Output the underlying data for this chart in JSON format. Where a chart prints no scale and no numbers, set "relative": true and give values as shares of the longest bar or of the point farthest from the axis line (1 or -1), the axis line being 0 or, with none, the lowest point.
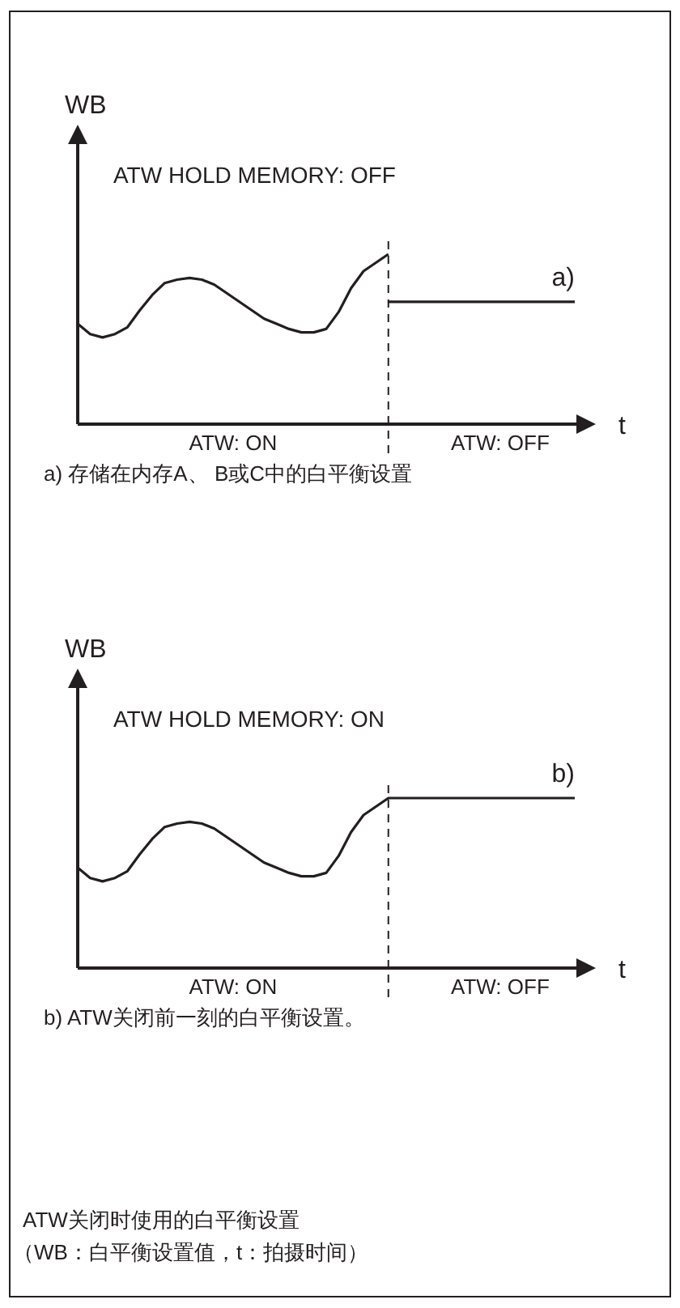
{
  "chart_data": [
    {
      "type": "line",
      "relative": true,
      "title": "ATW HOLD MEMORY: OFF",
      "xlabel": "t",
      "ylabel": "WB",
      "line_style": "solid",
      "marker": "none",
      "categories": [
        null,
        null,
        null,
        null,
        null,
        null,
        null,
        null,
        null,
        null,
        null,
        null,
        null,
        null,
        null,
        null,
        null,
        null,
        null,
        null,
        null,
        null,
        null,
        null,
        null,
        null,
        null,
        null,
        null,
        null,
        null,
        null,
        null,
        null,
        null,
        null,
        null,
        null,
        null,
        null,
        null
      ],
      "series": [
        {
          "color": "#231f20",
          "values": [
            0.59,
            0.53,
            0.51,
            0.53,
            0.57,
            0.67,
            0.76,
            0.83,
            0.85,
            0.86,
            0.85,
            0.82,
            0.77,
            0.72,
            0.67,
            0.62,
            0.59,
            0.56,
            0.54,
            0.54,
            0.56,
            0.66,
            0.8,
            0.9,
            0.95,
            1.0,
            null,
            null,
            null,
            null,
            null,
            null,
            null,
            null,
            null,
            null,
            null,
            null,
            null,
            null,
            null
          ]
        },
        {
          "name": "a)",
          "color": "#231f20",
          "values": [
            null,
            null,
            null,
            null,
            null,
            null,
            null,
            null,
            null,
            null,
            null,
            null,
            null,
            null,
            null,
            null,
            null,
            null,
            null,
            null,
            null,
            null,
            null,
            null,
            null,
            0.72,
            0.72,
            0.72,
            0.72,
            0.72,
            0.72,
            0.72,
            0.72,
            0.72,
            0.72,
            0.72,
            0.72,
            0.72,
            0.72,
            0.72,
            0.72
          ]
        }
      ],
      "annotations": [
        "ATW: ON",
        "ATW: OFF",
        "a) 存储在内存A、 B或C中的白平衡设置"
      ]
    },
    {
      "type": "line",
      "relative": true,
      "title": "ATW HOLD MEMORY: ON",
      "xlabel": "t",
      "ylabel": "WB",
      "line_style": "solid",
      "marker": "none",
      "categories": [
        null,
        null,
        null,
        null,
        null,
        null,
        null,
        null,
        null,
        null,
        null,
        null,
        null,
        null,
        null,
        null,
        null,
        null,
        null,
        null,
        null,
        null,
        null,
        null,
        null,
        null,
        null,
        null,
        null,
        null,
        null,
        null,
        null,
        null,
        null,
        null,
        null,
        null,
        null,
        null,
        null
      ],
      "series": [
        {
          "name": "b)",
          "color": "#231f20",
          "values": [
            0.59,
            0.53,
            0.51,
            0.53,
            0.57,
            0.67,
            0.76,
            0.83,
            0.85,
            0.86,
            0.85,
            0.82,
            0.77,
            0.72,
            0.67,
            0.62,
            0.59,
            0.56,
            0.54,
            0.54,
            0.56,
            0.66,
            0.8,
            0.9,
            0.95,
            1.0,
            1.0,
            1.0,
            1.0,
            1.0,
            1.0,
            1.0,
            1.0,
            1.0,
            1.0,
            1.0,
            1.0,
            1.0,
            1.0,
            1.0,
            1.0
          ]
        }
      ],
      "annotations": [
        "ATW: ON",
        "ATW: OFF",
        "b) ATW关闭前一刻的白平衡设置。",
        "ATW关闭时使用的白平衡设置",
        "（WB：白平衡设置值，t：拍摄时间）"
      ]
    }
  ]
}
